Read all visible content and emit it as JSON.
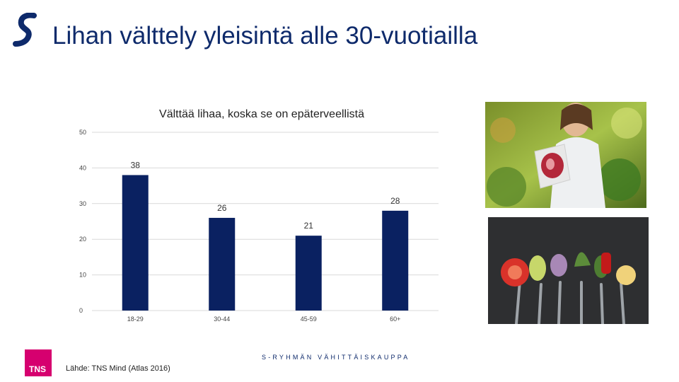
{
  "slide": {
    "title": "Lihan välttely yleisintä alle 30-vuotiailla",
    "brand_text": "S-RYHMÄN VÄHITTÄISKAUPPA",
    "source": "Lähde: TNS Mind (Atlas 2016)",
    "tns_logo_text": "TNS"
  },
  "colors": {
    "bar": "#0a2161",
    "title": "#0e2a6b",
    "tns_logo": "#d6006f",
    "s_logo": "#0e2a6b"
  },
  "chart_data": {
    "type": "bar",
    "title": "Välttää lihaa, koska se on epäterveellistä",
    "categories": [
      "18-29",
      "30-44",
      "45-59",
      "60+"
    ],
    "values": [
      38,
      26,
      21,
      28
    ],
    "ylim": [
      0,
      50
    ],
    "yticks": [
      0,
      10,
      20,
      30,
      40,
      50
    ],
    "grid": true,
    "xlabel": "",
    "ylabel": ""
  },
  "images": {
    "photo_top": "woman-holding-packaged-meat-photo",
    "photo_bottom": "vegetables-on-forks-photo"
  }
}
